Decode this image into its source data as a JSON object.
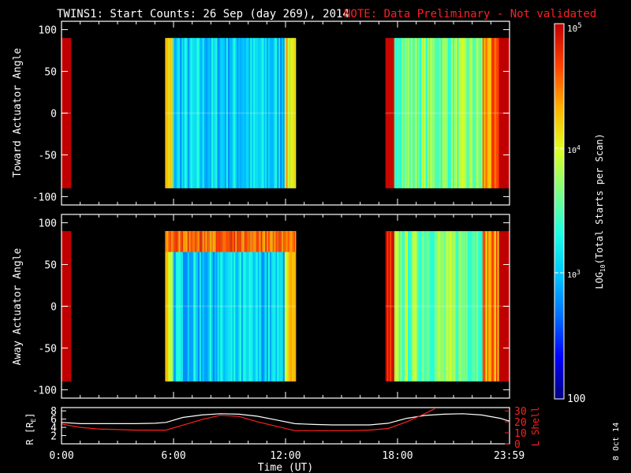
{
  "chart_data": [
    {
      "type": "heatmap",
      "panel": "toward",
      "title_main": "TWINS1: Start Counts: 26 Sep (day 269), 2014",
      "title_note": "NOTE: Data Preliminary - Not validated",
      "ylabel": "Toward Actuator Angle",
      "xlim_hours": [
        0,
        24
      ],
      "ylim": [
        -110,
        110
      ],
      "yticks": [
        100,
        50,
        0,
        -50,
        -100
      ],
      "angle_range": [
        -90,
        90
      ],
      "data_intervals_hours": [
        [
          0.0,
          0.5
        ],
        [
          5.55,
          12.55
        ],
        [
          17.35,
          23.99
        ]
      ],
      "log10_colorscale": {
        "min": 100,
        "max": 100000
      },
      "series": [
        {
          "name": "segment-1",
          "t": [
            0.0,
            0.5
          ],
          "level": "high"
        },
        {
          "name": "segment-2",
          "t": [
            5.55,
            12.55
          ],
          "level": "moderate"
        },
        {
          "name": "segment-3",
          "t": [
            17.35,
            23.99
          ],
          "level": "moderate-high"
        }
      ]
    },
    {
      "type": "heatmap",
      "panel": "away",
      "ylabel": "Away Actuator Angle",
      "xlim_hours": [
        0,
        24
      ],
      "ylim": [
        -110,
        110
      ],
      "yticks": [
        100,
        50,
        0,
        -50,
        -100
      ],
      "angle_range": [
        -90,
        90
      ],
      "data_intervals_hours": [
        [
          0.0,
          0.5
        ],
        [
          5.55,
          12.55
        ],
        [
          17.35,
          23.99
        ]
      ],
      "high_band_angle": [
        65,
        90
      ]
    },
    {
      "type": "line",
      "panel": "orbit",
      "xlabel": "Time (UT)",
      "ylabel_left": "R [R",
      "ylabel_left_sub": "E",
      "ylabel_left_end": "]",
      "ylabel_right": "L Shell",
      "xlim_hours": [
        0,
        24
      ],
      "yticks_left": [
        8,
        6,
        4,
        2
      ],
      "yticks_right": [
        30,
        20,
        10,
        0
      ],
      "xtick_labels": [
        "0:00",
        "6:00",
        "12:00",
        "18:00",
        "23:59"
      ],
      "xtick_hours": [
        0,
        6,
        12,
        18,
        23.983
      ],
      "series": [
        {
          "name": "R",
          "axis": "left",
          "color": "#ffffff",
          "x": [
            0,
            1,
            2,
            3,
            4,
            5,
            5.6,
            6.5,
            7.5,
            8.5,
            9.5,
            10.5,
            11.5,
            12.5,
            13.5,
            14.5,
            15.5,
            16.5,
            17.5,
            18.5,
            19.5,
            20.5,
            21.5,
            22.5,
            23.5,
            24
          ],
          "y": [
            5.2,
            4.9,
            4.9,
            4.9,
            4.9,
            5.0,
            5.2,
            6.4,
            7.0,
            7.3,
            7.2,
            6.7,
            5.8,
            4.9,
            4.7,
            4.6,
            4.6,
            4.6,
            5.0,
            6.2,
            6.9,
            7.2,
            7.3,
            7.0,
            6.2,
            5.5
          ]
        },
        {
          "name": "L Shell",
          "axis": "right",
          "color": "#ff2020",
          "x": [
            0,
            1,
            2,
            3,
            4,
            5,
            5.6,
            6.5,
            7.5,
            8.5,
            9.5,
            10.5,
            11.5,
            12.5,
            13.5,
            14.5,
            15.5,
            16.5,
            17.5,
            18.5,
            19.4,
            20.0
          ],
          "y": [
            18,
            15,
            13.5,
            13,
            12.5,
            12.5,
            12.5,
            17,
            22,
            26,
            25,
            20,
            16,
            12,
            12,
            12,
            12,
            12.5,
            14,
            20,
            27,
            32
          ]
        }
      ]
    }
  ],
  "colorbar": {
    "label_prefix": "LOG",
    "label_sub": "10",
    "label_rest": "(Total Starts per Scan)",
    "tick_top_base": "10",
    "tick_top_exp": "5",
    "tick_mid1_base": "10",
    "tick_mid1_exp": "4",
    "tick_mid2_base": "10",
    "tick_mid2_exp": "3",
    "tick_bottom": "100",
    "colors": [
      "#000080",
      "#0000ff",
      "#0070ff",
      "#00c8ff",
      "#20ffe0",
      "#80ff80",
      "#e0ff20",
      "#ffb000",
      "#ff4000",
      "#c00000"
    ]
  },
  "footer_date": "8 Oct 14"
}
